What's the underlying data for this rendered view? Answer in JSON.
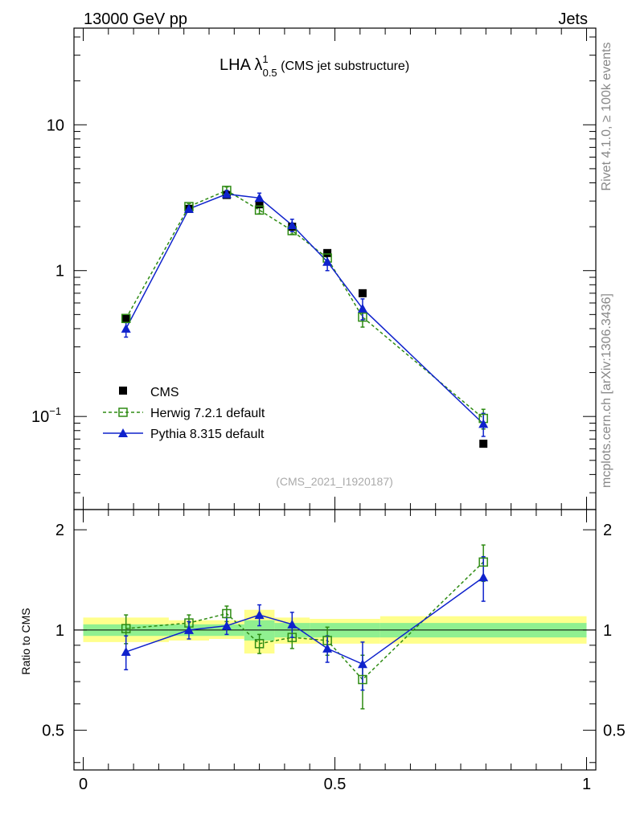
{
  "header": {
    "energy": "13000 GeV pp",
    "process": "Jets",
    "rivet": "Rivet 4.1.0, ≥ 100k events",
    "source": "mcplots.cern.ch [arXiv:1306.3436]"
  },
  "chart_data": {
    "type": "line",
    "title": "LHA λ",
    "title_sup": "1",
    "title_sub": "0.5",
    "title_suffix": " (CMS jet substructure)",
    "analysis": "(CMS_2021_I1920187)",
    "xlim": [
      0,
      1
    ],
    "main": {
      "yscale": "log",
      "ylim": [
        0.023,
        46
      ],
      "yticks": [
        {
          "value": 10,
          "label": "10"
        },
        {
          "value": 1,
          "label": "1"
        },
        {
          "value": 0.1,
          "label": "10",
          "exp": "−1"
        }
      ]
    },
    "ratio": {
      "ylabel": "Ratio to CMS",
      "ylim": [
        0.38,
        2.3
      ],
      "yticks": [
        {
          "value": 2,
          "label": "2"
        },
        {
          "value": 1,
          "label": "1"
        },
        {
          "value": 0.5,
          "label": "0.5"
        }
      ]
    },
    "xticks": [
      {
        "value": 0,
        "label": "0"
      },
      {
        "value": 0.5,
        "label": "0.5"
      },
      {
        "value": 1,
        "label": "1"
      }
    ],
    "legend": [
      {
        "name": "CMS",
        "style": "cms"
      },
      {
        "name": "Herwig 7.2.1 default",
        "style": "herwig"
      },
      {
        "name": "Pythia 8.315 default",
        "style": "pythia"
      }
    ],
    "bands": [
      {
        "x0": 0.0,
        "x1": 0.17,
        "inner": [
          0.96,
          1.04
        ],
        "outer": [
          0.92,
          1.09
        ]
      },
      {
        "x0": 0.17,
        "x1": 0.25,
        "inner": [
          0.96,
          1.04
        ],
        "outer": [
          0.93,
          1.07
        ]
      },
      {
        "x0": 0.25,
        "x1": 0.32,
        "inner": [
          0.96,
          1.04
        ],
        "outer": [
          0.94,
          1.07
        ]
      },
      {
        "x0": 0.32,
        "x1": 0.38,
        "inner": [
          0.93,
          1.07
        ],
        "outer": [
          0.85,
          1.15
        ]
      },
      {
        "x0": 0.38,
        "x1": 0.45,
        "inner": [
          0.95,
          1.05
        ],
        "outer": [
          0.91,
          1.09
        ]
      },
      {
        "x0": 0.45,
        "x1": 0.59,
        "inner": [
          0.95,
          1.05
        ],
        "outer": [
          0.91,
          1.08
        ]
      },
      {
        "x0": 0.59,
        "x1": 1.0,
        "inner": [
          0.95,
          1.05
        ],
        "outer": [
          0.91,
          1.1
        ]
      }
    ],
    "series": [
      {
        "name": "CMS",
        "x": [
          0.085,
          0.21,
          0.285,
          0.35,
          0.415,
          0.485,
          0.555,
          0.795
        ],
        "y": [
          0.47,
          2.65,
          3.3,
          2.85,
          2.0,
          1.32,
          0.7,
          0.065
        ]
      },
      {
        "name": "Herwig 7.2.1 default",
        "x": [
          0.085,
          0.21,
          0.285,
          0.35,
          0.415,
          0.485,
          0.555,
          0.795
        ],
        "y": [
          0.47,
          2.75,
          3.55,
          2.6,
          1.88,
          1.22,
          0.48,
          0.097
        ],
        "yerr": [
          0.03,
          0.12,
          0.2,
          0.15,
          0.1,
          0.08,
          0.07,
          0.015
        ],
        "ratio": [
          1.01,
          1.05,
          1.12,
          0.91,
          0.95,
          0.93,
          0.71,
          1.6
        ],
        "ratio_err": [
          0.1,
          0.06,
          0.06,
          0.06,
          0.07,
          0.09,
          0.13,
          0.2
        ]
      },
      {
        "name": "Pythia 8.315 default",
        "x": [
          0.085,
          0.21,
          0.285,
          0.35,
          0.415,
          0.485,
          0.555,
          0.795
        ],
        "y": [
          0.4,
          2.65,
          3.35,
          3.15,
          2.05,
          1.15,
          0.55,
          0.089
        ],
        "yerr": [
          0.05,
          0.12,
          0.2,
          0.25,
          0.2,
          0.15,
          0.09,
          0.016
        ],
        "ratio": [
          0.86,
          1.0,
          1.03,
          1.11,
          1.04,
          0.88,
          0.79,
          1.44
        ],
        "ratio_err": [
          0.1,
          0.06,
          0.06,
          0.08,
          0.09,
          0.08,
          0.13,
          0.22
        ]
      }
    ]
  }
}
